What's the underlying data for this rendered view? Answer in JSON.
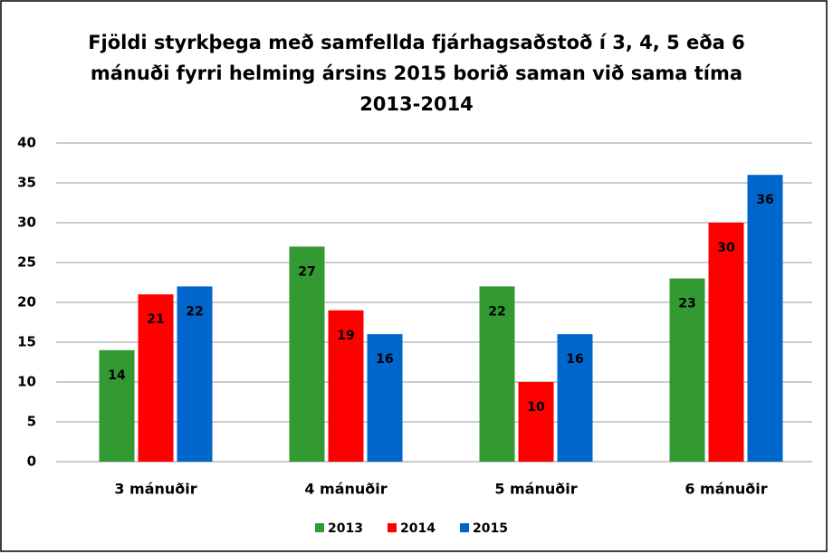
{
  "chart_data": {
    "type": "bar",
    "title": [
      "Fjöldi styrkþega með samfellda fjárhagsaðstoð í 3, 4, 5 eða 6",
      "mánuði fyrri helming ársins 2015 borið saman við sama tíma",
      "2013-2014"
    ],
    "categories": [
      "3 mánuðir",
      "4 mánuðir",
      "5 mánuðir",
      "6 mánuðir"
    ],
    "series": [
      {
        "name": "2013",
        "color": "#339933",
        "values": [
          14,
          27,
          22,
          23
        ]
      },
      {
        "name": "2014",
        "color": "#ff0000",
        "values": [
          21,
          19,
          10,
          30
        ]
      },
      {
        "name": "2015",
        "color": "#0066cc",
        "values": [
          22,
          16,
          16,
          36
        ]
      }
    ],
    "ylim": [
      0,
      40
    ],
    "yticks": [
      0,
      5,
      10,
      15,
      20,
      25,
      30,
      35,
      40
    ],
    "grid": true,
    "legend": "bottom"
  }
}
